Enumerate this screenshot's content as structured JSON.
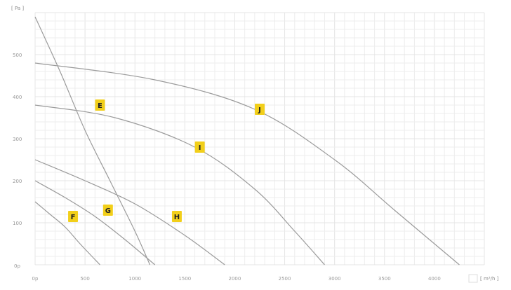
{
  "chart_data": {
    "type": "line",
    "title": "",
    "y_unit_label": "[ Pa ]",
    "x_unit_label": "[ m³/h ]",
    "origin_label": "0p",
    "y_ticks": [
      "100",
      "200",
      "300",
      "400",
      "500"
    ],
    "x_ticks": [
      "0p",
      "500",
      "1000",
      "1500",
      "2000",
      "2500",
      "3000",
      "3500",
      "4000"
    ],
    "xlim": [
      0,
      4500
    ],
    "ylim": [
      0,
      600
    ],
    "grid": true,
    "series": [
      {
        "name": "E",
        "x": [
          0,
          250,
          500,
          750,
          1000,
          1150
        ],
        "y": [
          590,
          460,
          320,
          200,
          80,
          0
        ]
      },
      {
        "name": "F",
        "x": [
          0,
          150,
          300,
          450,
          650
        ],
        "y": [
          150,
          120,
          90,
          50,
          0
        ]
      },
      {
        "name": "G",
        "x": [
          0,
          300,
          600,
          900,
          1200
        ],
        "y": [
          200,
          160,
          115,
          60,
          0
        ]
      },
      {
        "name": "H",
        "x": [
          0,
          500,
          1000,
          1500,
          1900
        ],
        "y": [
          250,
          200,
          145,
          70,
          0
        ]
      },
      {
        "name": "I",
        "x": [
          0,
          800,
          1600,
          2200,
          2600,
          2900
        ],
        "y": [
          380,
          350,
          280,
          180,
          80,
          0
        ]
      },
      {
        "name": "J",
        "x": [
          0,
          1200,
          2200,
          3000,
          3600,
          4250
        ],
        "y": [
          480,
          440,
          370,
          250,
          130,
          0
        ]
      }
    ],
    "labels": [
      {
        "text": "E",
        "x": 650,
        "y": 380
      },
      {
        "text": "F",
        "x": 380,
        "y": 115
      },
      {
        "text": "G",
        "x": 730,
        "y": 130
      },
      {
        "text": "H",
        "x": 1420,
        "y": 115
      },
      {
        "text": "I",
        "x": 1650,
        "y": 280
      },
      {
        "text": "J",
        "x": 2250,
        "y": 370
      }
    ],
    "colors": {
      "curve": "#9b9b9b",
      "badge": "#f2cf1a",
      "grid": "#ededed"
    }
  }
}
